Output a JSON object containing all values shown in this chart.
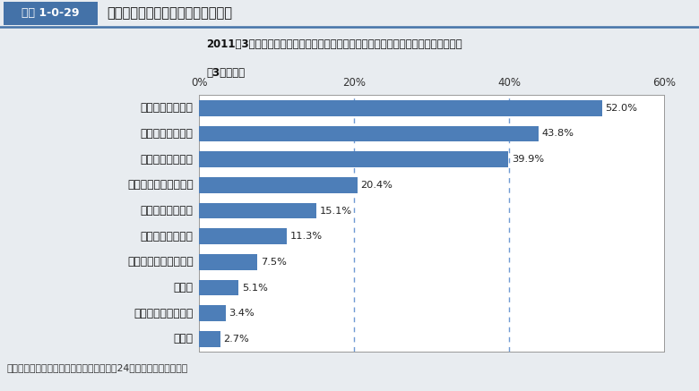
{
  "title_box_label": "図表 1-0-29",
  "title_main": "東日本大震災後の国民の意識の変化",
  "subtitle_line1": "2011年3月に起こった東日本大震災後、あなたの考え方で変わったことは何ですか。",
  "subtitle_line2": "（3つまで）",
  "categories": [
    "防災意識の高まり",
    "節電意識の高まり",
    "家族の絆の大切さ",
    "政治への関心の高まり",
    "地域の絆の大切さ",
    "健康意識の高まり",
    "友人等との絆の大切さ",
    "仕事観",
    "疎開先確保の必要性",
    "その他"
  ],
  "values": [
    52.0,
    43.8,
    39.9,
    20.4,
    15.1,
    11.3,
    7.5,
    5.1,
    3.4,
    2.7
  ],
  "bar_color": "#4d7eb8",
  "xlim": [
    0,
    60
  ],
  "xticks": [
    0,
    20,
    40,
    60
  ],
  "xticklabels": [
    "0%",
    "20%",
    "40%",
    "60%"
  ],
  "dashed_lines": [
    20,
    40
  ],
  "footer": "出典：国土交通省「国民意識調査」（平成24年１月末～２月実施）",
  "header_box_color": "#4472a8",
  "outer_bg_color": "#e8ecf0",
  "chart_bg_color": "#ffffff",
  "header_stripe_color": "#4472a8",
  "title_border_color": "#4472a8"
}
